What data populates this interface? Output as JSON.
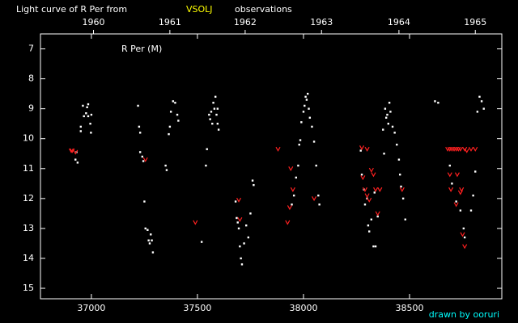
{
  "chart_data": {
    "type": "scatter",
    "title": "Light curve of R Per from",
    "title_highlight": "VSOLJ",
    "title_suffix": "observations",
    "annotation": "R Per (M)",
    "credit": "drawn by ooruri",
    "xlim": [
      36760,
      38935
    ],
    "xticks": [
      37000,
      37500,
      38000,
      38500
    ],
    "x2ticks": [
      {
        "value": 37010,
        "label": "1960"
      },
      {
        "value": 37370,
        "label": "1961"
      },
      {
        "value": 37725,
        "label": "1962"
      },
      {
        "value": 38085,
        "label": "1963"
      },
      {
        "value": 38450,
        "label": "1964"
      },
      {
        "value": 38810,
        "label": "1965"
      }
    ],
    "ylim": [
      6.5,
      15.35
    ],
    "y_inverted": true,
    "yticks": [
      7,
      8,
      9,
      10,
      11,
      12,
      13,
      14,
      15
    ],
    "series": [
      {
        "color": "#ffffff",
        "marker": "dot",
        "x": [
          36930,
          36935,
          36925,
          36950,
          36950,
          36960,
          36965,
          36975,
          36980,
          36985,
          36985,
          36995,
          36998,
          37000,
          37220,
          37225,
          37230,
          37230,
          37240,
          37245,
          37250,
          37255,
          37265,
          37270,
          37275,
          37280,
          37290,
          37285,
          37350,
          37355,
          37365,
          37370,
          37375,
          37385,
          37395,
          37405,
          37410,
          37520,
          37540,
          37545,
          37555,
          37560,
          37565,
          37570,
          37575,
          37580,
          37585,
          37590,
          37595,
          37600,
          37595,
          37680,
          37685,
          37690,
          37695,
          37700,
          37705,
          37710,
          37720,
          37730,
          37740,
          37750,
          37760,
          37765,
          37945,
          37955,
          37965,
          37975,
          37980,
          37985,
          37990,
          38000,
          38005,
          38010,
          38015,
          38020,
          38025,
          38030,
          38040,
          38050,
          38060,
          38070,
          38075,
          38270,
          38275,
          38285,
          38290,
          38300,
          38305,
          38310,
          38320,
          38330,
          38340,
          38350,
          38335,
          38375,
          38380,
          38385,
          38390,
          38395,
          38400,
          38405,
          38410,
          38420,
          38430,
          38440,
          38450,
          38455,
          38460,
          38470,
          38480,
          38620,
          38635,
          38690,
          38700,
          38720,
          38740,
          38755,
          38760,
          38790,
          38800,
          38810,
          38820,
          38830,
          38840,
          38850
        ],
        "values": [
          10.45,
          10.8,
          10.7,
          9.6,
          9.75,
          8.9,
          9.25,
          9.15,
          8.95,
          8.85,
          9.25,
          9.5,
          9.8,
          9.2,
          8.9,
          9.6,
          9.8,
          10.45,
          10.6,
          10.75,
          12.1,
          13.0,
          13.05,
          13.4,
          13.5,
          13.2,
          13.8,
          13.4,
          10.9,
          11.05,
          9.85,
          9.6,
          9.1,
          8.75,
          8.8,
          9.2,
          9.4,
          13.45,
          10.9,
          10.35,
          9.2,
          9.35,
          9.1,
          9.5,
          8.8,
          9.0,
          8.6,
          9.2,
          9.5,
          9.7,
          9.0,
          12.1,
          12.65,
          12.8,
          13.0,
          13.6,
          14.0,
          14.2,
          13.5,
          12.9,
          13.3,
          12.5,
          11.4,
          11.55,
          12.2,
          11.9,
          11.3,
          10.9,
          10.2,
          10.05,
          9.45,
          9.1,
          8.9,
          8.6,
          8.7,
          8.5,
          9.0,
          9.3,
          9.6,
          10.1,
          10.9,
          11.9,
          12.2,
          10.4,
          11.2,
          11.7,
          12.2,
          12.0,
          12.9,
          13.1,
          12.7,
          13.6,
          13.6,
          12.6,
          11.8,
          9.7,
          10.5,
          9.0,
          9.3,
          9.2,
          9.5,
          8.8,
          9.1,
          9.6,
          9.8,
          10.2,
          10.7,
          11.2,
          11.6,
          12.0,
          12.7,
          8.75,
          8.8,
          10.9,
          11.5,
          12.1,
          12.4,
          13.0,
          13.3,
          12.4,
          11.9,
          11.1,
          9.1,
          8.6,
          8.75,
          9.0
        ]
      },
      {
        "color": "#ff2020",
        "marker": "v",
        "x": [
          36905,
          36910,
          36925,
          37255,
          37490,
          37695,
          37700,
          37880,
          37925,
          37935,
          37940,
          37950,
          38050,
          38275,
          38280,
          38290,
          38300,
          38310,
          38320,
          38330,
          38340,
          38350,
          38360,
          38300,
          38465,
          38680,
          38690,
          38700,
          38710,
          38720,
          38730,
          38740,
          38760,
          38770,
          38790,
          38810,
          38690,
          38695,
          38720,
          38740,
          38745,
          38750,
          38760,
          38725
        ],
        "values": [
          10.4,
          10.4,
          10.45,
          10.7,
          12.8,
          12.05,
          12.7,
          10.35,
          12.8,
          12.3,
          11.0,
          11.7,
          12.0,
          10.3,
          11.3,
          11.7,
          11.9,
          12.05,
          11.05,
          11.2,
          11.7,
          12.5,
          11.7,
          10.35,
          11.7,
          10.35,
          10.35,
          10.35,
          10.35,
          10.35,
          10.35,
          10.35,
          10.35,
          10.4,
          10.35,
          10.35,
          11.2,
          11.7,
          12.2,
          11.8,
          11.7,
          13.2,
          13.6,
          11.2
        ]
      }
    ]
  }
}
